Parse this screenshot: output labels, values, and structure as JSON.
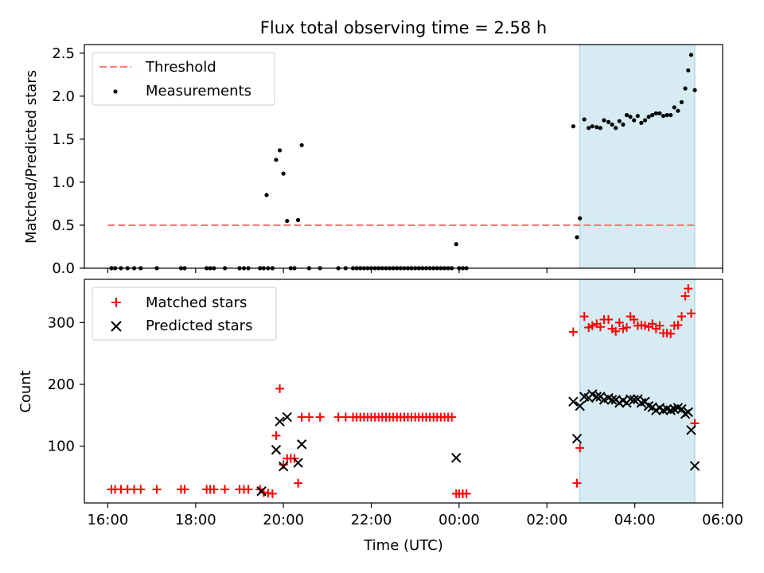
{
  "figure_title": "Flux total observing time = 2.58 h",
  "colors": {
    "threshold": "#ff7777",
    "measurements": "#000000",
    "matched": "#ff0000",
    "predicted": "#000000",
    "highlight": "#add8e6"
  },
  "chart_data": [
    {
      "type": "scatter",
      "title": "Flux total observing time = 2.58 h",
      "xlabel": "",
      "ylabel": "Matched/Predicted stars",
      "xlim": [
        "15:28",
        "06:00"
      ],
      "ylim": [
        0,
        2.6
      ],
      "yticks": [
        "0.0",
        "0.5",
        "1.0",
        "1.5",
        "2.0",
        "2.5"
      ],
      "grid": false,
      "legend_position": "top-left",
      "highlight_span": {
        "start": "02:45",
        "end": "05:22"
      },
      "threshold": {
        "name": "Threshold",
        "y": 0.5,
        "x_start": "16:00",
        "x_end": "05:22",
        "style": "dashed"
      },
      "series": [
        {
          "name": "Measurements",
          "marker": "dot",
          "points": [
            [
              "16:05",
              0
            ],
            [
              "16:10",
              0
            ],
            [
              "16:18",
              0
            ],
            [
              "16:27",
              0
            ],
            [
              "16:36",
              0
            ],
            [
              "16:45",
              0
            ],
            [
              "17:07",
              0
            ],
            [
              "17:40",
              0
            ],
            [
              "17:45",
              0
            ],
            [
              "18:15",
              0
            ],
            [
              "18:20",
              0
            ],
            [
              "18:25",
              0
            ],
            [
              "18:40",
              0
            ],
            [
              "19:00",
              0
            ],
            [
              "19:06",
              0
            ],
            [
              "19:12",
              0
            ],
            [
              "19:28",
              0
            ],
            [
              "19:33",
              0
            ],
            [
              "19:39",
              0
            ],
            [
              "19:45",
              0
            ],
            [
              "19:37",
              0.85
            ],
            [
              "19:50",
              1.26
            ],
            [
              "19:55",
              1.37
            ],
            [
              "20:00",
              1.1
            ],
            [
              "20:05",
              0.55
            ],
            [
              "20:10",
              0
            ],
            [
              "20:15",
              0
            ],
            [
              "20:20",
              0.56
            ],
            [
              "20:25",
              1.43
            ],
            [
              "20:35",
              0
            ],
            [
              "20:50",
              0
            ],
            [
              "21:15",
              0
            ],
            [
              "21:25",
              0
            ],
            [
              "21:35",
              0
            ],
            [
              "21:40",
              0
            ],
            [
              "21:45",
              0
            ],
            [
              "21:50",
              0
            ],
            [
              "21:55",
              0
            ],
            [
              "22:00",
              0
            ],
            [
              "22:05",
              0
            ],
            [
              "22:10",
              0
            ],
            [
              "22:15",
              0
            ],
            [
              "22:20",
              0
            ],
            [
              "22:25",
              0
            ],
            [
              "22:30",
              0
            ],
            [
              "22:35",
              0
            ],
            [
              "22:40",
              0
            ],
            [
              "22:45",
              0
            ],
            [
              "22:50",
              0
            ],
            [
              "22:55",
              0
            ],
            [
              "23:00",
              0
            ],
            [
              "23:05",
              0
            ],
            [
              "23:10",
              0
            ],
            [
              "23:15",
              0
            ],
            [
              "23:20",
              0
            ],
            [
              "23:25",
              0
            ],
            [
              "23:30",
              0
            ],
            [
              "23:35",
              0
            ],
            [
              "23:40",
              0
            ],
            [
              "23:45",
              0
            ],
            [
              "23:50",
              0
            ],
            [
              "23:56",
              0.28
            ],
            [
              "00:00",
              0
            ],
            [
              "00:05",
              0
            ],
            [
              "00:10",
              0
            ],
            [
              "02:36",
              1.65
            ],
            [
              "02:41",
              0.36
            ],
            [
              "02:45",
              0.58
            ],
            [
              "02:51",
              1.73
            ],
            [
              "02:57",
              1.63
            ],
            [
              "03:02",
              1.65
            ],
            [
              "03:08",
              1.64
            ],
            [
              "03:13",
              1.63
            ],
            [
              "03:18",
              1.72
            ],
            [
              "03:24",
              1.7
            ],
            [
              "03:29",
              1.67
            ],
            [
              "03:34",
              1.63
            ],
            [
              "03:39",
              1.71
            ],
            [
              "03:44",
              1.67
            ],
            [
              "03:49",
              1.78
            ],
            [
              "03:54",
              1.76
            ],
            [
              "03:59",
              1.72
            ],
            [
              "04:04",
              1.77
            ],
            [
              "04:09",
              1.69
            ],
            [
              "04:14",
              1.72
            ],
            [
              "04:19",
              1.76
            ],
            [
              "04:24",
              1.78
            ],
            [
              "04:29",
              1.8
            ],
            [
              "04:34",
              1.8
            ],
            [
              "04:39",
              1.77
            ],
            [
              "04:44",
              1.78
            ],
            [
              "04:49",
              1.78
            ],
            [
              "04:54",
              1.87
            ],
            [
              "04:59",
              1.83
            ],
            [
              "05:04",
              1.93
            ],
            [
              "05:09",
              2.09
            ],
            [
              "05:13",
              2.3
            ],
            [
              "05:17",
              2.48
            ],
            [
              "05:22",
              2.07
            ]
          ]
        }
      ]
    },
    {
      "type": "scatter",
      "title": "",
      "xlabel": "Time (UTC)",
      "ylabel": "Count",
      "xlim": [
        "15:28",
        "06:00"
      ],
      "xticks": [
        "16:00",
        "18:00",
        "20:00",
        "22:00",
        "00:00",
        "02:00",
        "04:00",
        "06:00"
      ],
      "ylim": [
        8,
        370
      ],
      "yticks": [
        "100",
        "200",
        "300"
      ],
      "grid": false,
      "legend_position": "top-left",
      "highlight_span": {
        "start": "02:45",
        "end": "05:22"
      },
      "series": [
        {
          "name": "Matched stars",
          "marker": "plus",
          "points": [
            [
              "16:05",
              30
            ],
            [
              "16:10",
              30
            ],
            [
              "16:18",
              30
            ],
            [
              "16:27",
              30
            ],
            [
              "16:36",
              30
            ],
            [
              "16:45",
              30
            ],
            [
              "17:07",
              30
            ],
            [
              "17:40",
              30
            ],
            [
              "17:45",
              30
            ],
            [
              "18:15",
              30
            ],
            [
              "18:20",
              30
            ],
            [
              "18:25",
              30
            ],
            [
              "18:40",
              30
            ],
            [
              "19:00",
              30
            ],
            [
              "19:06",
              30
            ],
            [
              "19:12",
              30
            ],
            [
              "19:28",
              30
            ],
            [
              "19:33",
              25
            ],
            [
              "19:39",
              24
            ],
            [
              "19:45",
              23
            ],
            [
              "19:50",
              117
            ],
            [
              "19:55",
              193
            ],
            [
              "20:00",
              70
            ],
            [
              "20:05",
              80
            ],
            [
              "20:10",
              80
            ],
            [
              "20:15",
              80
            ],
            [
              "20:20",
              40
            ],
            [
              "20:25",
              147
            ],
            [
              "20:35",
              147
            ],
            [
              "20:50",
              147
            ],
            [
              "21:15",
              147
            ],
            [
              "21:25",
              147
            ],
            [
              "21:35",
              147
            ],
            [
              "21:40",
              147
            ],
            [
              "21:45",
              147
            ],
            [
              "21:50",
              147
            ],
            [
              "21:55",
              147
            ],
            [
              "22:00",
              147
            ],
            [
              "22:05",
              147
            ],
            [
              "22:10",
              147
            ],
            [
              "22:15",
              147
            ],
            [
              "22:20",
              147
            ],
            [
              "22:25",
              147
            ],
            [
              "22:30",
              147
            ],
            [
              "22:35",
              147
            ],
            [
              "22:40",
              147
            ],
            [
              "22:45",
              147
            ],
            [
              "22:50",
              147
            ],
            [
              "22:55",
              147
            ],
            [
              "23:00",
              147
            ],
            [
              "23:05",
              147
            ],
            [
              "23:10",
              147
            ],
            [
              "23:15",
              147
            ],
            [
              "23:20",
              147
            ],
            [
              "23:25",
              147
            ],
            [
              "23:30",
              147
            ],
            [
              "23:35",
              147
            ],
            [
              "23:40",
              147
            ],
            [
              "23:45",
              147
            ],
            [
              "23:50",
              147
            ],
            [
              "23:56",
              23
            ],
            [
              "00:00",
              23
            ],
            [
              "00:05",
              23
            ],
            [
              "00:10",
              23
            ],
            [
              "02:36",
              285
            ],
            [
              "02:41",
              40
            ],
            [
              "02:45",
              97
            ],
            [
              "02:51",
              310
            ],
            [
              "02:57",
              292
            ],
            [
              "03:02",
              295
            ],
            [
              "03:08",
              298
            ],
            [
              "03:13",
              293
            ],
            [
              "03:18",
              305
            ],
            [
              "03:24",
              305
            ],
            [
              "03:29",
              290
            ],
            [
              "03:34",
              286
            ],
            [
              "03:39",
              300
            ],
            [
              "03:44",
              290
            ],
            [
              "03:49",
              292
            ],
            [
              "03:54",
              310
            ],
            [
              "03:59",
              305
            ],
            [
              "04:04",
              295
            ],
            [
              "04:09",
              296
            ],
            [
              "04:14",
              295
            ],
            [
              "04:19",
              293
            ],
            [
              "04:24",
              298
            ],
            [
              "04:29",
              290
            ],
            [
              "04:34",
              295
            ],
            [
              "04:39",
              283
            ],
            [
              "04:44",
              283
            ],
            [
              "04:49",
              282
            ],
            [
              "04:54",
              295
            ],
            [
              "04:59",
              296
            ],
            [
              "05:04",
              310
            ],
            [
              "05:09",
              343
            ],
            [
              "05:13",
              355
            ],
            [
              "05:17",
              315
            ],
            [
              "05:22",
              137
            ]
          ]
        },
        {
          "name": "Predicted stars",
          "marker": "x",
          "points": [
            [
              "19:30",
              27
            ],
            [
              "19:50",
              94
            ],
            [
              "19:55",
              140
            ],
            [
              "20:00",
              67
            ],
            [
              "20:05",
              147
            ],
            [
              "20:20",
              73
            ],
            [
              "20:25",
              103
            ],
            [
              "23:56",
              81
            ],
            [
              "02:36",
              172
            ],
            [
              "02:41",
              112
            ],
            [
              "02:45",
              165
            ],
            [
              "02:51",
              180
            ],
            [
              "02:57",
              178
            ],
            [
              "03:02",
              184
            ],
            [
              "03:08",
              180
            ],
            [
              "03:13",
              180
            ],
            [
              "03:18",
              175
            ],
            [
              "03:24",
              178
            ],
            [
              "03:29",
              175
            ],
            [
              "03:34",
              175
            ],
            [
              "03:39",
              170
            ],
            [
              "03:44",
              174
            ],
            [
              "03:49",
              170
            ],
            [
              "03:54",
              176
            ],
            [
              "03:59",
              175
            ],
            [
              "04:04",
              176
            ],
            [
              "04:09",
              170
            ],
            [
              "04:14",
              172
            ],
            [
              "04:19",
              165
            ],
            [
              "04:24",
              163
            ],
            [
              "04:29",
              158
            ],
            [
              "04:34",
              162
            ],
            [
              "04:39",
              158
            ],
            [
              "04:44",
              160
            ],
            [
              "04:49",
              158
            ],
            [
              "04:54",
              160
            ],
            [
              "04:59",
              162
            ],
            [
              "05:04",
              160
            ],
            [
              "05:09",
              152
            ],
            [
              "05:13",
              155
            ],
            [
              "05:17",
              126
            ],
            [
              "05:22",
              68
            ]
          ]
        }
      ]
    }
  ]
}
